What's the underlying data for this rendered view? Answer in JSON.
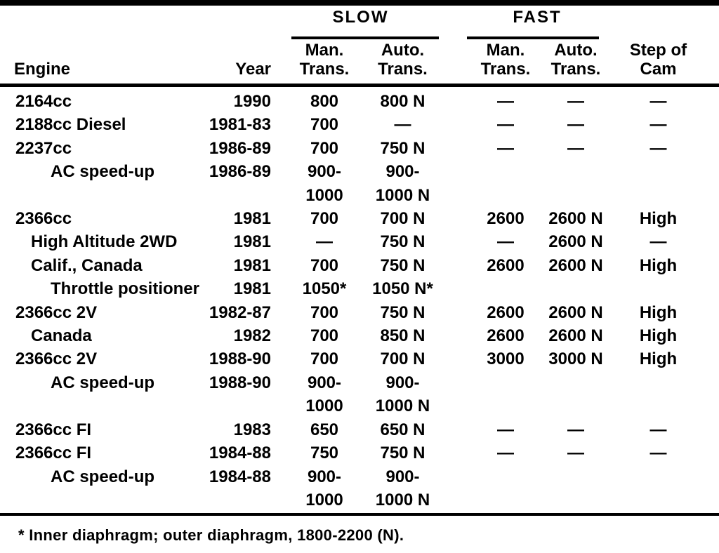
{
  "page": {
    "background": "#ffffff",
    "text_color": "#000000"
  },
  "header": {
    "groups": {
      "slow": "SLOW",
      "fast": "FAST"
    },
    "columns": {
      "engine": "Engine",
      "year": "Year",
      "slow_man": "Man.\nTrans.",
      "slow_auto": "Auto.\nTrans.",
      "fast_man": "Man.\nTrans.",
      "fast_auto": "Auto.\nTrans.",
      "cam": "Step of\nCam"
    }
  },
  "rows": [
    {
      "engine": "2164cc",
      "indent": 0,
      "year": "1990",
      "slow_man": "800",
      "slow_auto": "800 N",
      "fast_man": "—",
      "fast_auto": "—",
      "cam": "—"
    },
    {
      "engine": "2188cc Diesel",
      "indent": 0,
      "year": "1981-83",
      "slow_man": "700",
      "slow_auto": "—",
      "fast_man": "—",
      "fast_auto": "—",
      "cam": "—"
    },
    {
      "engine": "2237cc",
      "indent": 0,
      "year": "1986-89",
      "slow_man": "700",
      "slow_auto": "750 N",
      "fast_man": "—",
      "fast_auto": "—",
      "cam": "—"
    },
    {
      "engine": "AC speed-up",
      "indent": 2,
      "year": "1986-89",
      "slow_man": "900-\n1000",
      "slow_auto": "900-\n1000 N",
      "fast_man": "",
      "fast_auto": "",
      "cam": ""
    },
    {
      "engine": "2366cc",
      "indent": 0,
      "year": "1981",
      "slow_man": "700",
      "slow_auto": "700 N",
      "fast_man": "2600",
      "fast_auto": "2600 N",
      "cam": "High"
    },
    {
      "engine": "High Altitude 2WD",
      "indent": 1,
      "year": "1981",
      "slow_man": "—",
      "slow_auto": "750 N",
      "fast_man": "—",
      "fast_auto": "2600 N",
      "cam": "—"
    },
    {
      "engine": "Calif., Canada",
      "indent": 1,
      "year": "1981",
      "slow_man": "700",
      "slow_auto": "750 N",
      "fast_man": "2600",
      "fast_auto": "2600 N",
      "cam": "High"
    },
    {
      "engine": "Throttle positioner",
      "indent": 2,
      "year": "1981",
      "slow_man": "1050*",
      "slow_auto": "1050 N*",
      "fast_man": "",
      "fast_auto": "",
      "cam": ""
    },
    {
      "engine": "2366cc 2V",
      "indent": 0,
      "year": "1982-87",
      "slow_man": "700",
      "slow_auto": "750 N",
      "fast_man": "2600",
      "fast_auto": "2600 N",
      "cam": "High"
    },
    {
      "engine": "Canada",
      "indent": 1,
      "year": "1982",
      "slow_man": "700",
      "slow_auto": "850 N",
      "fast_man": "2600",
      "fast_auto": "2600 N",
      "cam": "High"
    },
    {
      "engine": "2366cc 2V",
      "indent": 0,
      "year": "1988-90",
      "slow_man": "700",
      "slow_auto": "700 N",
      "fast_man": "3000",
      "fast_auto": "3000 N",
      "cam": "High"
    },
    {
      "engine": "AC speed-up",
      "indent": 2,
      "year": "1988-90",
      "slow_man": "900-\n1000",
      "slow_auto": "900-\n1000 N",
      "fast_man": "",
      "fast_auto": "",
      "cam": ""
    },
    {
      "engine": "2366cc FI",
      "indent": 0,
      "year": "1983",
      "slow_man": "650",
      "slow_auto": "650 N",
      "fast_man": "—",
      "fast_auto": "—",
      "cam": "—"
    },
    {
      "engine": "2366cc FI",
      "indent": 0,
      "year": "1984-88",
      "slow_man": "750",
      "slow_auto": "750 N",
      "fast_man": "—",
      "fast_auto": "—",
      "cam": "—"
    },
    {
      "engine": "AC speed-up",
      "indent": 2,
      "year": "1984-88",
      "slow_man": "900-\n1000",
      "slow_auto": "900-\n1000 N",
      "fast_man": "",
      "fast_auto": "",
      "cam": ""
    }
  ],
  "footnote": "* Inner diaphragm; outer diaphragm, 1800-2200 (N)."
}
